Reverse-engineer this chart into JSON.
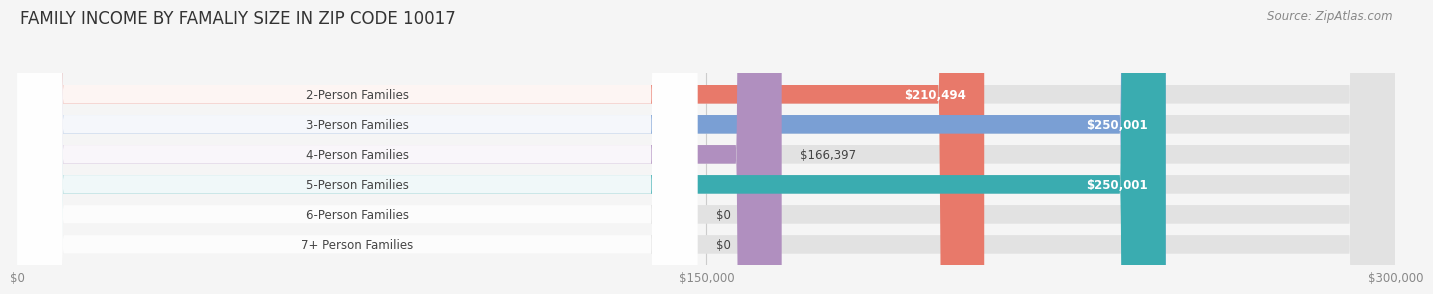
{
  "title": "FAMILY INCOME BY FAMALIY SIZE IN ZIP CODE 10017",
  "source": "Source: ZipAtlas.com",
  "categories": [
    "2-Person Families",
    "3-Person Families",
    "4-Person Families",
    "5-Person Families",
    "6-Person Families",
    "7+ Person Families"
  ],
  "values": [
    210494,
    250001,
    166397,
    250001,
    0,
    0
  ],
  "bar_colors": [
    "#E8796A",
    "#7A9FD4",
    "#B08FBF",
    "#3AACB0",
    "#AAAADD",
    "#F4A0B0"
  ],
  "value_labels": [
    "$210,494",
    "$250,001",
    "$166,397",
    "$250,001",
    "$0",
    "$0"
  ],
  "label_inside": [
    true,
    true,
    false,
    true,
    false,
    false
  ],
  "xlim": [
    0,
    300000
  ],
  "xticks": [
    0,
    150000,
    300000
  ],
  "xticklabels": [
    "$0",
    "$150,000",
    "$300,000"
  ],
  "background_color": "#f5f5f5",
  "title_fontsize": 12,
  "label_fontsize": 8.5,
  "value_fontsize": 8.5,
  "source_fontsize": 8.5
}
